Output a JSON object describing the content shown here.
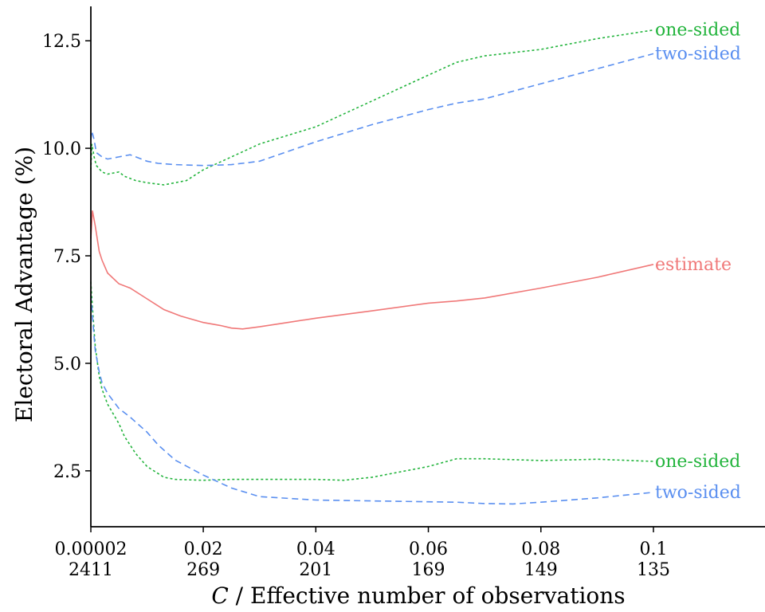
{
  "chart_data": {
    "type": "line",
    "title": "",
    "xlabel": "C / Effective number of observations",
    "xlabel_italic_part": "C",
    "xlabel_rest": " / Effective number of observations",
    "ylabel": "Electoral Advantage (%)",
    "xlim": [
      2e-05,
      0.1
    ],
    "ylim": [
      1.2,
      13.3
    ],
    "grid": false,
    "legend": "none (labels at line ends)",
    "x_ticks": [
      {
        "value": 2e-05,
        "label": "0.00002",
        "label2": "2411"
      },
      {
        "value": 0.02,
        "label": "0.02",
        "label2": "269"
      },
      {
        "value": 0.04,
        "label": "0.04",
        "label2": "201"
      },
      {
        "value": 0.06,
        "label": "0.06",
        "label2": "169"
      },
      {
        "value": 0.08,
        "label": "0.08",
        "label2": "149"
      },
      {
        "value": 0.1,
        "label": "0.1",
        "label2": "135"
      }
    ],
    "y_ticks": [
      {
        "value": 2.5,
        "label": "2.5"
      },
      {
        "value": 5.0,
        "label": "5.0"
      },
      {
        "value": 7.5,
        "label": "7.5"
      },
      {
        "value": 10.0,
        "label": "10.0"
      },
      {
        "value": 12.5,
        "label": "12.5"
      }
    ],
    "series": [
      {
        "name": "estimate",
        "color": "#f07878",
        "dash": "solid",
        "x": [
          2e-05,
          0.0003,
          0.0008,
          0.0015,
          0.002,
          0.003,
          0.005,
          0.007,
          0.01,
          0.013,
          0.016,
          0.02,
          0.023,
          0.025,
          0.027,
          0.03,
          0.035,
          0.04,
          0.05,
          0.06,
          0.065,
          0.07,
          0.08,
          0.09,
          0.1
        ],
        "y": [
          7.9,
          8.55,
          8.2,
          7.6,
          7.4,
          7.1,
          6.85,
          6.75,
          6.5,
          6.25,
          6.1,
          5.95,
          5.88,
          5.82,
          5.8,
          5.85,
          5.95,
          6.05,
          6.22,
          6.4,
          6.45,
          6.52,
          6.75,
          7.0,
          7.3
        ]
      },
      {
        "name": "one-sided",
        "color": "#22b43c",
        "dash": "3,3",
        "x": [
          2e-05,
          0.0002,
          0.0006,
          0.001,
          0.002,
          0.003,
          0.005,
          0.006,
          0.008,
          0.01,
          0.013,
          0.017,
          0.02,
          0.025,
          0.03,
          0.04,
          0.05,
          0.06,
          0.065,
          0.07,
          0.08,
          0.09,
          0.1
        ],
        "y": [
          9.5,
          10.1,
          9.8,
          9.6,
          9.45,
          9.4,
          9.45,
          9.35,
          9.25,
          9.2,
          9.15,
          9.25,
          9.5,
          9.8,
          10.1,
          10.5,
          11.1,
          11.7,
          12.0,
          12.15,
          12.3,
          12.55,
          12.75
        ]
      },
      {
        "name": "two-sided",
        "color": "#5a8ff0",
        "dash": "8,5",
        "x": [
          2e-05,
          0.0002,
          0.0006,
          0.001,
          0.002,
          0.003,
          0.005,
          0.007,
          0.01,
          0.012,
          0.015,
          0.02,
          0.025,
          0.03,
          0.04,
          0.05,
          0.06,
          0.065,
          0.07,
          0.08,
          0.09,
          0.1
        ],
        "y": [
          10.2,
          10.4,
          10.2,
          9.9,
          9.8,
          9.75,
          9.8,
          9.85,
          9.7,
          9.65,
          9.62,
          9.6,
          9.62,
          9.7,
          10.15,
          10.55,
          10.9,
          11.05,
          11.15,
          11.5,
          11.85,
          12.2
        ]
      },
      {
        "name": "one-sided",
        "color": "#22b43c",
        "dash": "3,3",
        "x": [
          2e-05,
          0.0003,
          0.0008,
          0.0015,
          0.002,
          0.003,
          0.005,
          0.006,
          0.008,
          0.01,
          0.013,
          0.015,
          0.02,
          0.025,
          0.03,
          0.04,
          0.045,
          0.05,
          0.06,
          0.065,
          0.07,
          0.08,
          0.09,
          0.1
        ],
        "y": [
          6.9,
          6.3,
          5.4,
          4.7,
          4.4,
          4.05,
          3.6,
          3.3,
          2.9,
          2.6,
          2.35,
          2.3,
          2.28,
          2.3,
          2.3,
          2.3,
          2.28,
          2.35,
          2.6,
          2.78,
          2.78,
          2.74,
          2.77,
          2.72
        ]
      },
      {
        "name": "two-sided",
        "color": "#5a8ff0",
        "dash": "8,5",
        "x": [
          2e-05,
          0.0003,
          0.0008,
          0.0015,
          0.002,
          0.003,
          0.005,
          0.007,
          0.01,
          0.012,
          0.015,
          0.02,
          0.025,
          0.03,
          0.04,
          0.05,
          0.06,
          0.065,
          0.07,
          0.075,
          0.08,
          0.09,
          0.1
        ],
        "y": [
          6.6,
          6.1,
          5.3,
          4.8,
          4.55,
          4.3,
          3.95,
          3.75,
          3.4,
          3.1,
          2.75,
          2.4,
          2.1,
          1.9,
          1.82,
          1.8,
          1.78,
          1.77,
          1.74,
          1.73,
          1.77,
          1.87,
          2.0
        ]
      }
    ]
  }
}
